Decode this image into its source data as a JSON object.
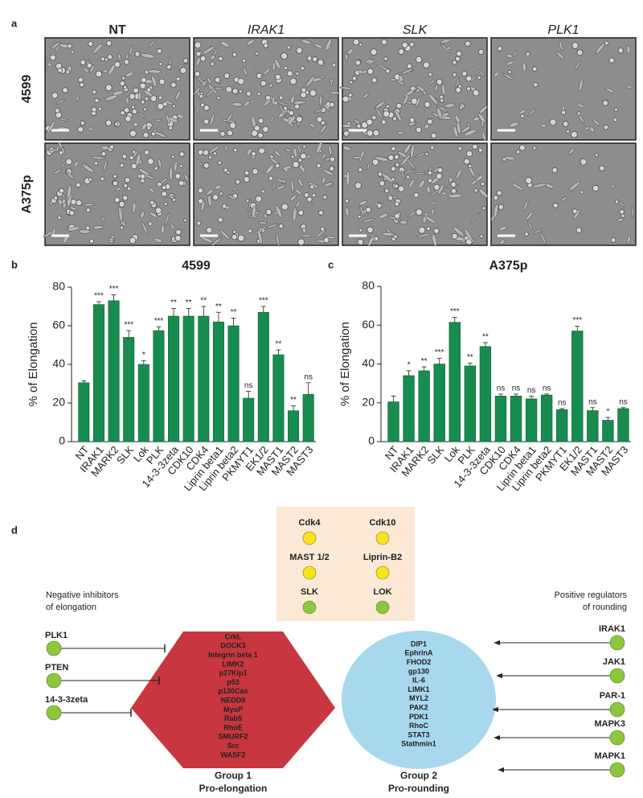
{
  "panel_a": {
    "label": "a",
    "columns": [
      "NT",
      "IRAK1",
      "SLK",
      "PLK1"
    ],
    "rows": [
      "4599",
      "A375p"
    ]
  },
  "chart_data": [
    {
      "type": "bar",
      "label": "b",
      "title": "4599",
      "y_label": "% of Elongation",
      "color": "#178c4e",
      "categories": [
        "NT",
        "IRAK1",
        "MARK2",
        "SLK",
        "Lok",
        "PLK",
        "14-3-3zeta",
        "CDK10",
        "CDK4",
        "Liprin beta1",
        "Liprin beta2",
        "PKMYT1",
        "EK1/2",
        "MAST1",
        "MAST2",
        "MAST3"
      ],
      "values": [
        30.5,
        71,
        73,
        54,
        40,
        57.5,
        65,
        65,
        65,
        62,
        60,
        22.5,
        67,
        45,
        16,
        24.5
      ],
      "errors": [
        1,
        1.5,
        3,
        3.5,
        2,
        2,
        4,
        4,
        5,
        5,
        4,
        3.5,
        3,
        2.5,
        2.5,
        6
      ],
      "annotations": [
        null,
        "***",
        "***",
        "***",
        "*",
        "***",
        "**",
        "**",
        "**",
        "**",
        "**",
        "ns",
        "***",
        "**",
        "**",
        "ns"
      ],
      "ylim": [
        0,
        80
      ],
      "yticks": [
        0,
        20,
        40,
        60,
        80
      ]
    },
    {
      "type": "bar",
      "label": "c",
      "title": "A375p",
      "y_label": "% of Elongation",
      "color": "#178c4e",
      "categories": [
        "NT",
        "IRAK1",
        "MARK2",
        "SLK",
        "Lok",
        "PLK",
        "14-3-3zeta",
        "CDK10",
        "CDK4",
        "Liprin beta1",
        "Liprin beta2",
        "PKMYT1",
        "EK1/2",
        "MAST1",
        "MAST2",
        "MAST3"
      ],
      "values": [
        20.5,
        34,
        36.5,
        40,
        61.5,
        39,
        49,
        23.5,
        23.5,
        22,
        24,
        16.5,
        57,
        16,
        11,
        17
      ],
      "errors": [
        3,
        2.5,
        2,
        3,
        2.5,
        1.5,
        2,
        1,
        1,
        1.5,
        0.5,
        0.5,
        2.5,
        1.5,
        1.5,
        0.5
      ],
      "annotations": [
        null,
        "*",
        "**",
        "***",
        "***",
        "**",
        "**",
        "ns",
        "ns",
        "ns",
        "ns",
        "ns",
        "***",
        "ns",
        "*",
        "ns"
      ],
      "ylim": [
        0,
        80
      ],
      "yticks": [
        0,
        20,
        40,
        60,
        80
      ]
    }
  ],
  "panel_d": {
    "label": "d",
    "center_box": [
      {
        "label": "Cdk4",
        "color": "#f7e31c"
      },
      {
        "label": "Cdk10",
        "color": "#f7e31c"
      },
      {
        "label": "MAST 1/2",
        "color": "#f7e31c"
      },
      {
        "label": "Liprin-B2",
        "color": "#f7e31c"
      },
      {
        "label": "SLK",
        "color": "#8dc63f"
      },
      {
        "label": "LOK",
        "color": "#8dc63f"
      }
    ],
    "left_title": [
      "Negative inhibitors",
      "of elongation"
    ],
    "inhibitors": [
      "PLK1",
      "PTEN",
      "14-3-3zeta"
    ],
    "group1": {
      "items": [
        "CrkL",
        "DOCK3",
        "Integrin beta 1",
        "LIMK2",
        "p27Kip1",
        "p53",
        "p130Cas",
        "NEDD9",
        "MyoP",
        "Rab5",
        "RhoE",
        "SMURF2",
        "Src",
        "WASF2"
      ],
      "title": "Group 1",
      "subtitle": "Pro-elongation"
    },
    "group2": {
      "items": [
        "DIP1",
        "EphrinA",
        "FHOD2",
        "gp130",
        "IL-6",
        "LIMK1",
        "MYL2",
        "PAK2",
        "PDK1",
        "RhoC",
        "STAT3",
        "Stathmin1"
      ],
      "title": "Group 2",
      "subtitle": "Pro-rounding"
    },
    "right_title": [
      "Positive regulators",
      "of rounding"
    ],
    "regulators": [
      "IRAK1",
      "JAK1",
      "PAR-1",
      "MAPK3",
      "MAPK1"
    ]
  }
}
